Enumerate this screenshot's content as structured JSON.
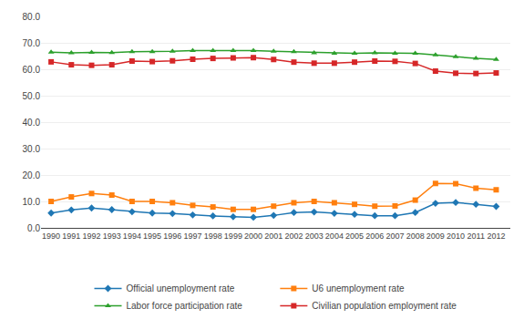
{
  "chart_data": {
    "type": "line",
    "x": [
      1990,
      1991,
      1992,
      1993,
      1994,
      1995,
      1996,
      1997,
      1998,
      1999,
      2000,
      2001,
      2002,
      2003,
      2004,
      2005,
      2006,
      2007,
      2008,
      2009,
      2010,
      2011,
      2012
    ],
    "xlim": [
      1989.5,
      2012.7
    ],
    "xticks": [
      1990,
      1991,
      1992,
      1993,
      1994,
      1995,
      1996,
      1997,
      1998,
      1999,
      2000,
      2001,
      2002,
      2003,
      2004,
      2005,
      2006,
      2007,
      2008,
      2009,
      2010,
      2011,
      2012
    ],
    "ylim": [
      0.0,
      80.0
    ],
    "yticks": [
      {
        "value": 0.0,
        "label": "0.0"
      },
      {
        "value": 10.0,
        "label": "10.0"
      },
      {
        "value": 20.0,
        "label": "20.0"
      },
      {
        "value": 30.0,
        "label": "30.0"
      },
      {
        "value": 40.0,
        "label": "40.0"
      },
      {
        "value": 50.0,
        "label": "50.0"
      },
      {
        "value": 60.0,
        "label": "60.0"
      },
      {
        "value": 70.0,
        "label": "70.0"
      },
      {
        "value": 80.0,
        "label": "80.0"
      }
    ],
    "grid": true,
    "legend": "bottom",
    "series": [
      {
        "name": "Official unemployment rate",
        "marker": "diamond",
        "values": [
          5.6,
          6.8,
          7.5,
          6.9,
          6.1,
          5.6,
          5.4,
          4.9,
          4.5,
          4.2,
          4.0,
          4.7,
          5.8,
          6.0,
          5.5,
          5.1,
          4.6,
          4.6,
          5.8,
          9.3,
          9.6,
          8.9,
          8.1
        ]
      },
      {
        "name": "U6 unemployment rate",
        "marker": "square",
        "values": [
          10.0,
          11.7,
          13.0,
          12.4,
          10.0,
          10.0,
          9.5,
          8.5,
          7.9,
          7.0,
          7.0,
          8.2,
          9.5,
          10.0,
          9.5,
          8.9,
          8.2,
          8.3,
          10.5,
          16.8,
          16.7,
          15.0,
          14.4
        ]
      },
      {
        "name": "Labor force participation rate",
        "marker": "triangle",
        "values": [
          66.5,
          66.2,
          66.4,
          66.3,
          66.6,
          66.6,
          66.8,
          67.1,
          67.1,
          67.1,
          67.1,
          66.8,
          66.6,
          66.2,
          66.0,
          66.0,
          66.2,
          66.0,
          66.0,
          65.4,
          64.7,
          64.1,
          63.7
        ]
      },
      {
        "name": "Civilian population employment rate",
        "marker": "square",
        "values": [
          62.8,
          61.7,
          61.5,
          61.7,
          63.1,
          62.9,
          63.2,
          63.8,
          64.1,
          64.3,
          64.4,
          63.7,
          62.7,
          62.3,
          62.3,
          62.7,
          63.1,
          63.0,
          62.2,
          59.3,
          58.5,
          58.4,
          58.6
        ]
      }
    ]
  }
}
